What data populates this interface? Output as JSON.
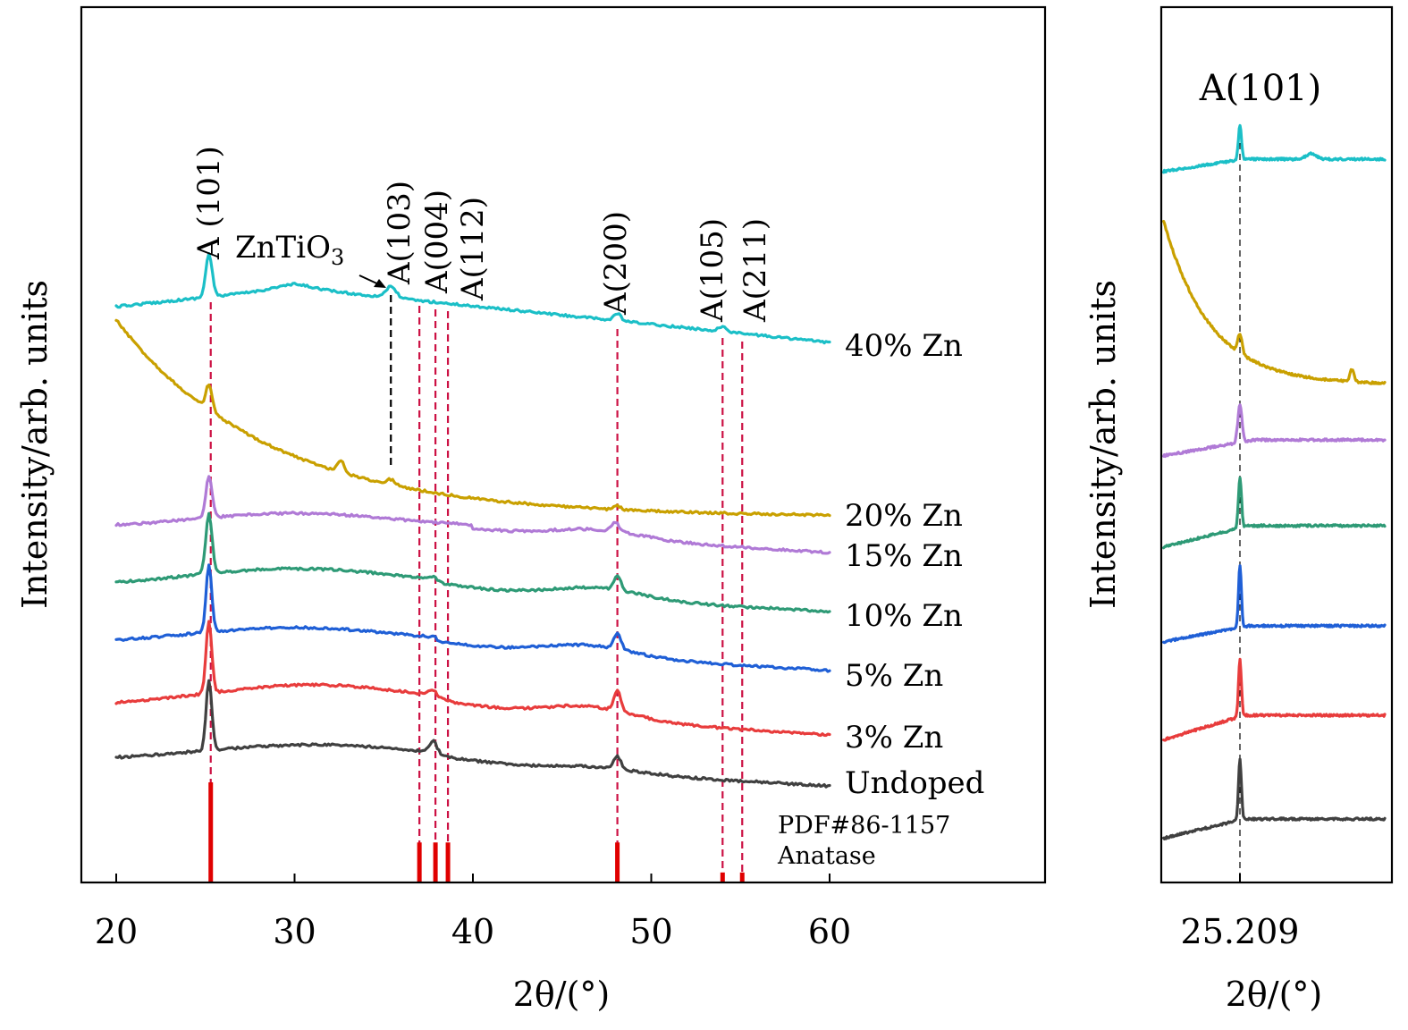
{
  "chart_data": [
    {
      "type": "line",
      "panel": "main",
      "xlabel": "2θ/(°)",
      "ylabel": "Intensity/arb. units",
      "xlim": [
        18,
        72
      ],
      "xticks": [
        20,
        30,
        40,
        50,
        60
      ],
      "y_scale": "arbitrary offset",
      "series": [
        {
          "name": "40% Zn",
          "color": "#1bbfc7",
          "peaks": [
            25.2,
            35.4,
            48.1,
            54.0
          ]
        },
        {
          "name": "20% Zn",
          "color": "#c9a000",
          "peaks": [
            25.2,
            32.6,
            35.4
          ]
        },
        {
          "name": "15% Zn",
          "color": "#b07ad6",
          "peaks": [
            25.2,
            48.0
          ]
        },
        {
          "name": "10% Zn",
          "color": "#2e9a76",
          "peaks": [
            25.2,
            48.1
          ]
        },
        {
          "name": "5% Zn",
          "color": "#1f5fd6",
          "peaks": [
            25.2,
            48.1
          ]
        },
        {
          "name": "3% Zn",
          "color": "#e83c3c",
          "peaks": [
            25.2,
            48.1
          ]
        },
        {
          "name": "Undoped",
          "color": "#404040",
          "peaks": [
            25.2,
            37.8,
            48.1
          ]
        }
      ],
      "annotations": [
        {
          "label": "A (101)",
          "x": 25.3
        },
        {
          "label": "ZnTiO3",
          "x": 35.4
        },
        {
          "label": "A(103)",
          "x": 37.0
        },
        {
          "label": "A(004)",
          "x": 37.9
        },
        {
          "label": "A(112)",
          "x": 38.6
        },
        {
          "label": "A(200)",
          "x": 48.1
        },
        {
          "label": "A(105)",
          "x": 54.0
        },
        {
          "label": "A(211)",
          "x": 55.1
        }
      ],
      "reference": {
        "label_line1": "PDF#86-1157",
        "label_line2": "Anatase",
        "color": "#e00000",
        "bars": [
          {
            "x": 25.3,
            "intensity": 1.0
          },
          {
            "x": 37.0,
            "intensity": 0.4
          },
          {
            "x": 37.9,
            "intensity": 0.4
          },
          {
            "x": 38.6,
            "intensity": 0.4
          },
          {
            "x": 48.1,
            "intensity": 0.4
          },
          {
            "x": 54.0,
            "intensity": 0.1
          },
          {
            "x": 55.1,
            "intensity": 0.1
          }
        ]
      },
      "reference_line_color": "#cc1144",
      "znti_line_color": "#000000"
    },
    {
      "type": "line",
      "panel": "inset",
      "title": "A(101)",
      "xlabel": "2θ/(°)",
      "ylabel": "Intensity/arb. units",
      "xtick_label": "25.209",
      "peak_x": 25.209,
      "series": [
        {
          "name": "40% Zn",
          "color": "#1bbfc7"
        },
        {
          "name": "20% Zn",
          "color": "#c9a000"
        },
        {
          "name": "15% Zn",
          "color": "#b07ad6"
        },
        {
          "name": "10% Zn",
          "color": "#2e9a76"
        },
        {
          "name": "5% Zn",
          "color": "#1f5fd6"
        },
        {
          "name": "3% Zn",
          "color": "#e83c3c"
        },
        {
          "name": "Undoped",
          "color": "#404040"
        }
      ]
    }
  ]
}
